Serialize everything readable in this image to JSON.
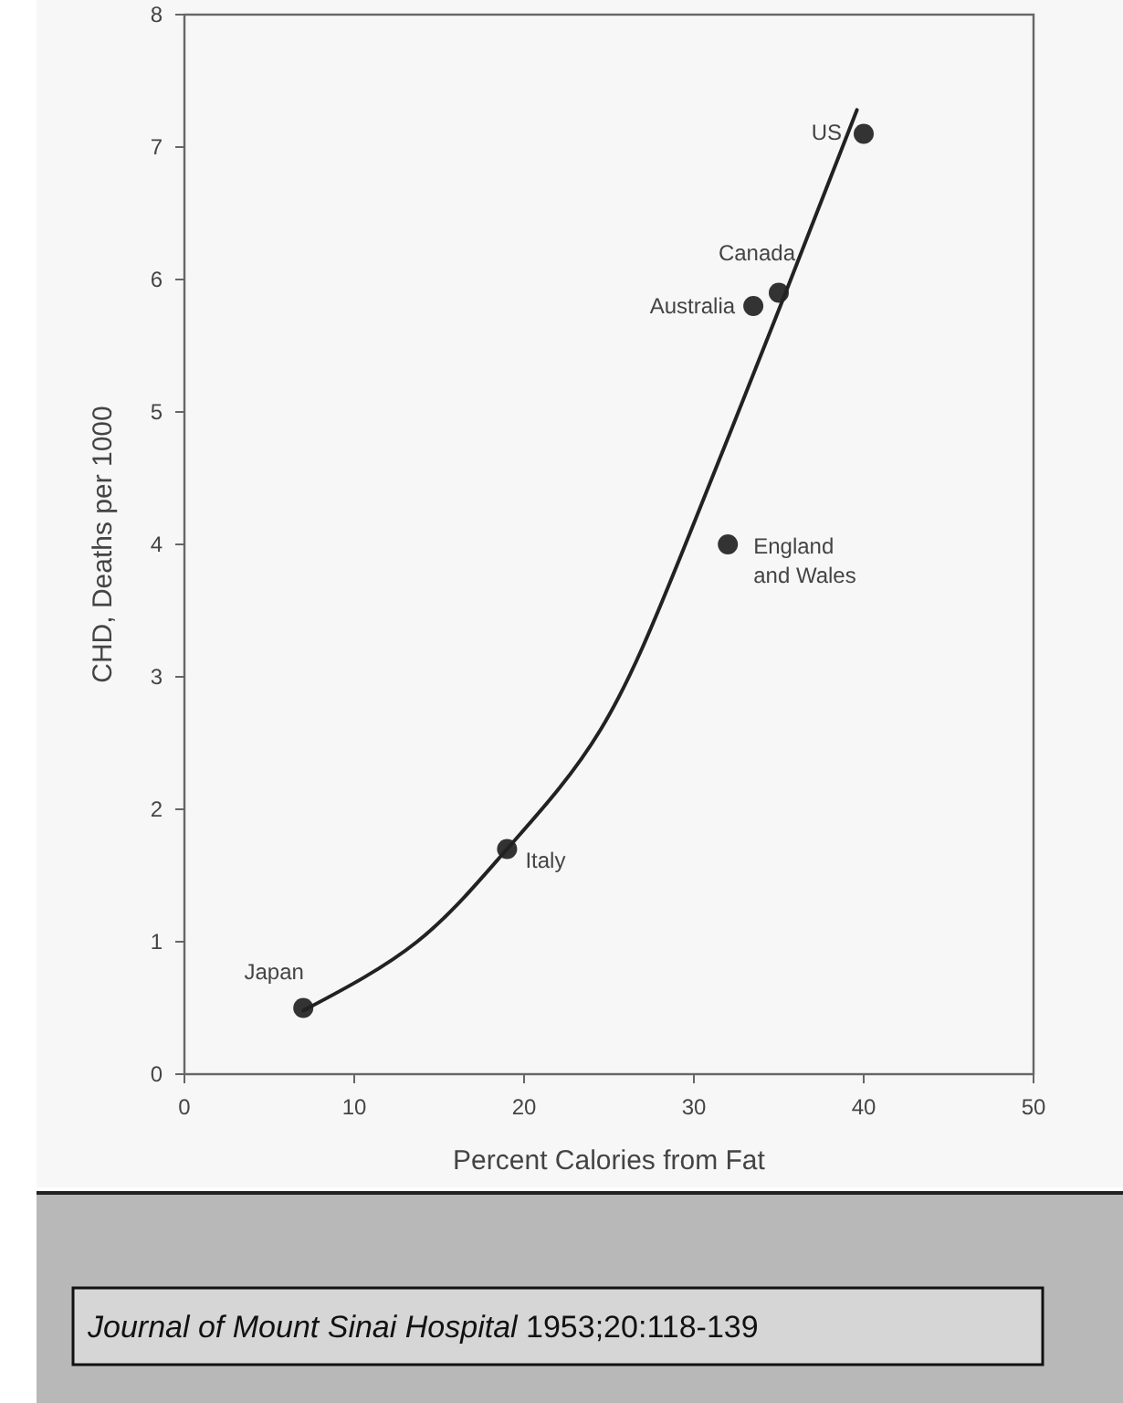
{
  "chart_data": {
    "type": "scatter",
    "xlabel": "Percent Calories from Fat",
    "ylabel": "CHD, Deaths per 1000",
    "xlim": [
      0,
      50
    ],
    "xticks": [
      0,
      10,
      20,
      30,
      40,
      50
    ],
    "ylim": [
      0,
      8
    ],
    "yticks": [
      0,
      1,
      2,
      3,
      4,
      5,
      6,
      7,
      8
    ],
    "grid": false,
    "series": [
      {
        "color": "#333333",
        "marker": "circle",
        "x": [
          7,
          19,
          32,
          33.5,
          35,
          40
        ],
        "values": [
          0.5,
          1.7,
          4.0,
          5.8,
          5.9,
          7.1
        ]
      },
      {
        "type": "line",
        "color": "#222222",
        "marker": "none",
        "line_style": "solid",
        "x": [
          7,
          13.7,
          19,
          24.5,
          29.5,
          35.4,
          39.6
        ],
        "values": [
          0.48,
          1.0,
          1.7,
          2.6,
          4.0,
          5.9,
          7.28
        ]
      }
    ],
    "annotations": [
      {
        "text": "Japan",
        "x": 7,
        "y": 0.5
      },
      {
        "text": "Italy",
        "x": 19,
        "y": 1.7
      },
      {
        "text": "England and Wales",
        "x": 32,
        "y": 4.0
      },
      {
        "text": "Australia",
        "x": 33.5,
        "y": 5.8
      },
      {
        "text": "Canada",
        "x": 35,
        "y": 5.9
      },
      {
        "text": "US",
        "x": 40,
        "y": 7.1
      },
      "Journal of Mount Sinai Hospital",
      "1953;20:118-139"
    ]
  }
}
